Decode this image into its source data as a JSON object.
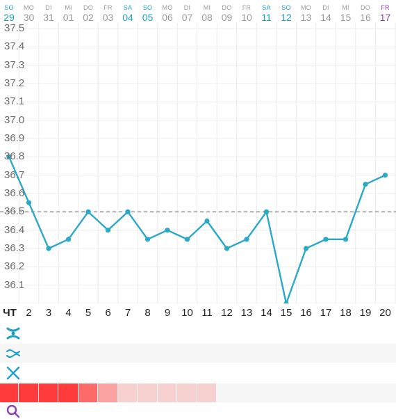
{
  "header": {
    "days": [
      {
        "dow": "SO",
        "date": "29",
        "color": "#1e9fc8"
      },
      {
        "dow": "MO",
        "date": "30",
        "color": "#9a9a9a"
      },
      {
        "dow": "DI",
        "date": "31",
        "color": "#9a9a9a"
      },
      {
        "dow": "MI",
        "date": "01",
        "color": "#9a9a9a"
      },
      {
        "dow": "DO",
        "date": "02",
        "color": "#9a9a9a"
      },
      {
        "dow": "FR",
        "date": "03",
        "color": "#9a9a9a"
      },
      {
        "dow": "SA",
        "date": "04",
        "color": "#1e9fc8"
      },
      {
        "dow": "SO",
        "date": "05",
        "color": "#1e9fc8"
      },
      {
        "dow": "MO",
        "date": "06",
        "color": "#9a9a9a"
      },
      {
        "dow": "DI",
        "date": "07",
        "color": "#9a9a9a"
      },
      {
        "dow": "MI",
        "date": "08",
        "color": "#9a9a9a"
      },
      {
        "dow": "DO",
        "date": "09",
        "color": "#9a9a9a"
      },
      {
        "dow": "FR",
        "date": "10",
        "color": "#9a9a9a"
      },
      {
        "dow": "SA",
        "date": "11",
        "color": "#1e9fc8"
      },
      {
        "dow": "SO",
        "date": "12",
        "color": "#1e9fc8"
      },
      {
        "dow": "MO",
        "date": "13",
        "color": "#9a9a9a"
      },
      {
        "dow": "DI",
        "date": "14",
        "color": "#9a9a9a"
      },
      {
        "dow": "MI",
        "date": "15",
        "color": "#9a9a9a"
      },
      {
        "dow": "DO",
        "date": "16",
        "color": "#9a9a9a"
      },
      {
        "dow": "FR",
        "date": "17",
        "color": "#8e44ad"
      }
    ]
  },
  "chart_data": {
    "type": "line",
    "series": [
      {
        "x": [
          1,
          2,
          3,
          4,
          5,
          6,
          7,
          8,
          9,
          10,
          11,
          12,
          13,
          14,
          15,
          16,
          17,
          18,
          19,
          20
        ],
        "values": [
          36.8,
          36.55,
          36.3,
          36.35,
          36.5,
          36.4,
          36.5,
          36.35,
          36.4,
          36.35,
          36.45,
          36.3,
          36.35,
          36.5,
          36.0,
          36.3,
          36.35,
          36.35,
          36.65,
          36.7
        ],
        "color": "#2aa8c8"
      }
    ],
    "coverline": 36.5,
    "ylim": [
      36.0,
      37.5
    ],
    "y_ticks": [
      "37.5",
      "37.4",
      "37.3",
      "37.2",
      "37.1",
      "37.0",
      "36.9",
      "36.8",
      "36.7",
      "36.6",
      "36.5",
      "36.4",
      "36.3",
      "36.2",
      "36.1"
    ],
    "grid": true
  },
  "cycle_days": {
    "first_label": "ЧT",
    "labels": [
      "2",
      "3",
      "4",
      "5",
      "6",
      "7",
      "8",
      "9",
      "10",
      "11",
      "12",
      "13",
      "14",
      "15",
      "16",
      "17",
      "18",
      "19",
      "20"
    ]
  },
  "rows": {
    "icons": [
      "cervix-icon",
      "mucus-icon",
      "ovulation-test-icon",
      "blood-drop-icon",
      "intercourse-icon"
    ],
    "period_intensity": [
      1,
      1,
      1,
      1,
      0.75,
      0.45,
      0.2,
      0.2,
      0.2,
      0.2,
      0.2
    ]
  },
  "colors": {
    "line": "#2aa8c8",
    "coverline": "#999999",
    "period": "#ff3b3b",
    "weekend": "#1e9fc8",
    "today": "#8e44ad"
  }
}
